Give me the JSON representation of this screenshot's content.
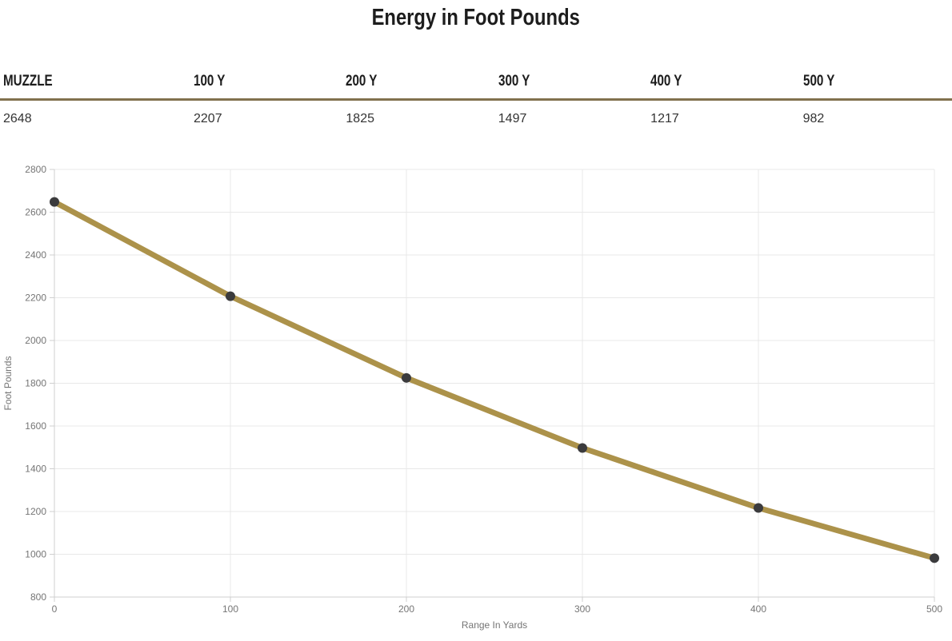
{
  "table": {
    "headers": [
      "MUZZLE",
      "100 Y",
      "200 Y",
      "300 Y",
      "400 Y",
      "500 Y"
    ],
    "values": [
      "2648",
      "2207",
      "1825",
      "1497",
      "1217",
      "982"
    ]
  },
  "chart_data": {
    "type": "line",
    "title": "Energy in Foot Pounds",
    "x": [
      0,
      100,
      200,
      300,
      400,
      500
    ],
    "values": [
      2648,
      2207,
      1825,
      1497,
      1217,
      982
    ],
    "xlabel": "Range In Yards",
    "ylabel": "Foot Pounds",
    "xlim": [
      0,
      500
    ],
    "ylim": [
      800,
      2800
    ],
    "xticks": [
      0,
      100,
      200,
      300,
      400,
      500
    ],
    "yticks": [
      800,
      1000,
      1200,
      1400,
      1600,
      1800,
      2000,
      2200,
      2400,
      2600,
      2800
    ],
    "grid": true,
    "legend": "none",
    "line_color": "#ac924a",
    "marker_color": "#3b3b3d",
    "grid_color": "#e8e8e8",
    "axis_color": "#cfcfcf",
    "tick_label_color": "#757575",
    "rule_color": "#81714e"
  }
}
